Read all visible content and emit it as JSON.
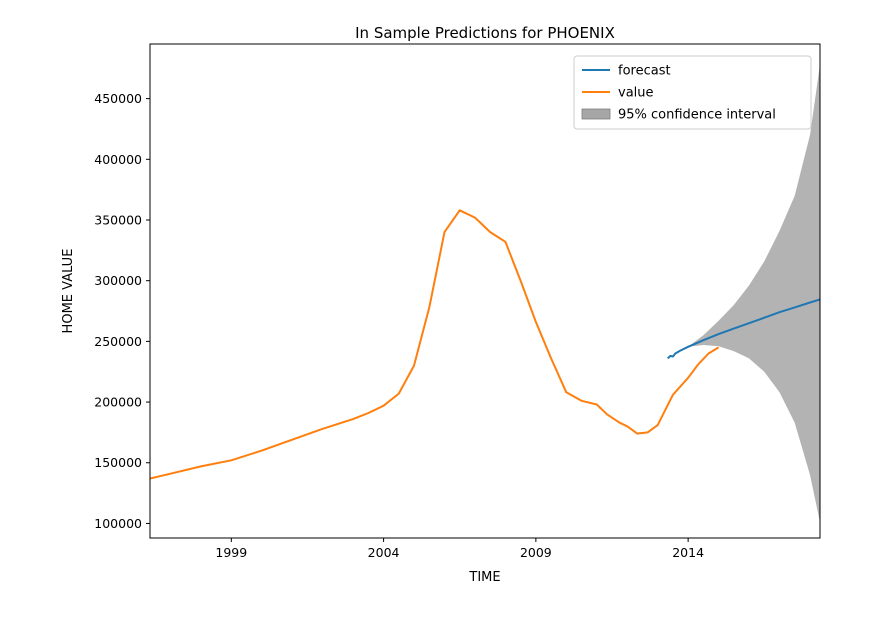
{
  "chart_data": {
    "type": "line",
    "title": "In Sample Predictions for PHOENIX",
    "xlabel": "TIME",
    "ylabel": "HOME VALUE",
    "xlim": [
      1996.33,
      2018.33
    ],
    "ylim": [
      88000,
      495000
    ],
    "x_ticks": [
      1999,
      2004,
      2009,
      2014
    ],
    "x_tick_labels": [
      "1999",
      "2004",
      "2009",
      "2014"
    ],
    "y_ticks": [
      100000,
      150000,
      200000,
      250000,
      300000,
      350000,
      400000,
      450000
    ],
    "y_tick_labels": [
      "100000",
      "150000",
      "200000",
      "250000",
      "300000",
      "350000",
      "400000",
      "450000"
    ],
    "legend_position": "top-right",
    "grid": false,
    "series": [
      {
        "name": "forecast",
        "color": "#1f77b4",
        "points": [
          [
            2013.33,
            236000
          ],
          [
            2013.42,
            238000
          ],
          [
            2013.5,
            237500
          ],
          [
            2013.58,
            240000
          ],
          [
            2013.75,
            242500
          ],
          [
            2014.0,
            245500
          ],
          [
            2014.5,
            251000
          ],
          [
            2015.0,
            256000
          ],
          [
            2015.5,
            260500
          ],
          [
            2016.0,
            265000
          ],
          [
            2016.5,
            269500
          ],
          [
            2017.0,
            274000
          ],
          [
            2017.5,
            278000
          ],
          [
            2018.0,
            282000
          ],
          [
            2018.33,
            284500
          ]
        ]
      },
      {
        "name": "value",
        "color": "#ff7f0e",
        "points": [
          [
            1996.33,
            137000
          ],
          [
            1997.0,
            141000
          ],
          [
            1998.0,
            147000
          ],
          [
            1999.0,
            152000
          ],
          [
            2000.0,
            160000
          ],
          [
            2001.0,
            169000
          ],
          [
            2002.0,
            178000
          ],
          [
            2003.0,
            186000
          ],
          [
            2003.5,
            191000
          ],
          [
            2004.0,
            197000
          ],
          [
            2004.5,
            207000
          ],
          [
            2005.0,
            230000
          ],
          [
            2005.5,
            278000
          ],
          [
            2006.0,
            340000
          ],
          [
            2006.5,
            358000
          ],
          [
            2007.0,
            352000
          ],
          [
            2007.5,
            340000
          ],
          [
            2008.0,
            332000
          ],
          [
            2008.5,
            300000
          ],
          [
            2009.0,
            266000
          ],
          [
            2009.5,
            236000
          ],
          [
            2010.0,
            208000
          ],
          [
            2010.5,
            201000
          ],
          [
            2011.0,
            198000
          ],
          [
            2011.33,
            190000
          ],
          [
            2011.75,
            183000
          ],
          [
            2012.0,
            180000
          ],
          [
            2012.33,
            174000
          ],
          [
            2012.67,
            175000
          ],
          [
            2013.0,
            181000
          ],
          [
            2013.5,
            206000
          ],
          [
            2014.0,
            220000
          ],
          [
            2014.33,
            231000
          ],
          [
            2014.67,
            240000
          ],
          [
            2015.0,
            245000
          ]
        ]
      }
    ],
    "confidence_interval": {
      "name": "95% confidence interval",
      "color": "#a6a6a6",
      "points": [
        [
          2014.0,
          245500,
          245500
        ],
        [
          2014.5,
          247000,
          255000
        ],
        [
          2015.0,
          246000,
          267000
        ],
        [
          2015.5,
          242000,
          280000
        ],
        [
          2016.0,
          236000,
          296000
        ],
        [
          2016.5,
          225000,
          316000
        ],
        [
          2017.0,
          208000,
          341000
        ],
        [
          2017.5,
          183000,
          370000
        ],
        [
          2018.0,
          140000,
          420000
        ],
        [
          2018.33,
          101000,
          478000
        ]
      ]
    }
  }
}
